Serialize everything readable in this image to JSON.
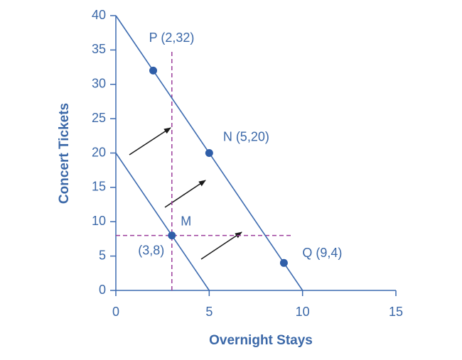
{
  "chart_data": {
    "type": "line",
    "xlabel": "Overnight Stays",
    "ylabel": "Concert Tickets",
    "xlim": [
      0,
      15
    ],
    "xticks": [
      0,
      5,
      10,
      15
    ],
    "ylim": [
      0,
      40
    ],
    "yticks": [
      0,
      5,
      10,
      15,
      20,
      25,
      30,
      35,
      40
    ],
    "line_color": "#3d6bb0",
    "lines": [
      {
        "x": [
          0,
          5
        ],
        "values": [
          20,
          0
        ]
      },
      {
        "x": [
          0,
          10
        ],
        "values": [
          40,
          0
        ]
      }
    ],
    "points": {
      "color": "#2f5ea8",
      "x": [
        2,
        5,
        9,
        3
      ],
      "values": [
        32,
        20,
        4,
        8
      ],
      "labels": [
        "P (2,32)",
        "N (5,20)",
        "Q (9,4)",
        "M"
      ]
    },
    "annotations": [
      "(3,8)"
    ],
    "reference_color": "#9b3c9b",
    "reference_lines": [
      {
        "x": 3,
        "y_range": [
          0,
          35
        ]
      },
      {
        "y": 8,
        "x_range": [
          0,
          9.4
        ]
      }
    ]
  }
}
